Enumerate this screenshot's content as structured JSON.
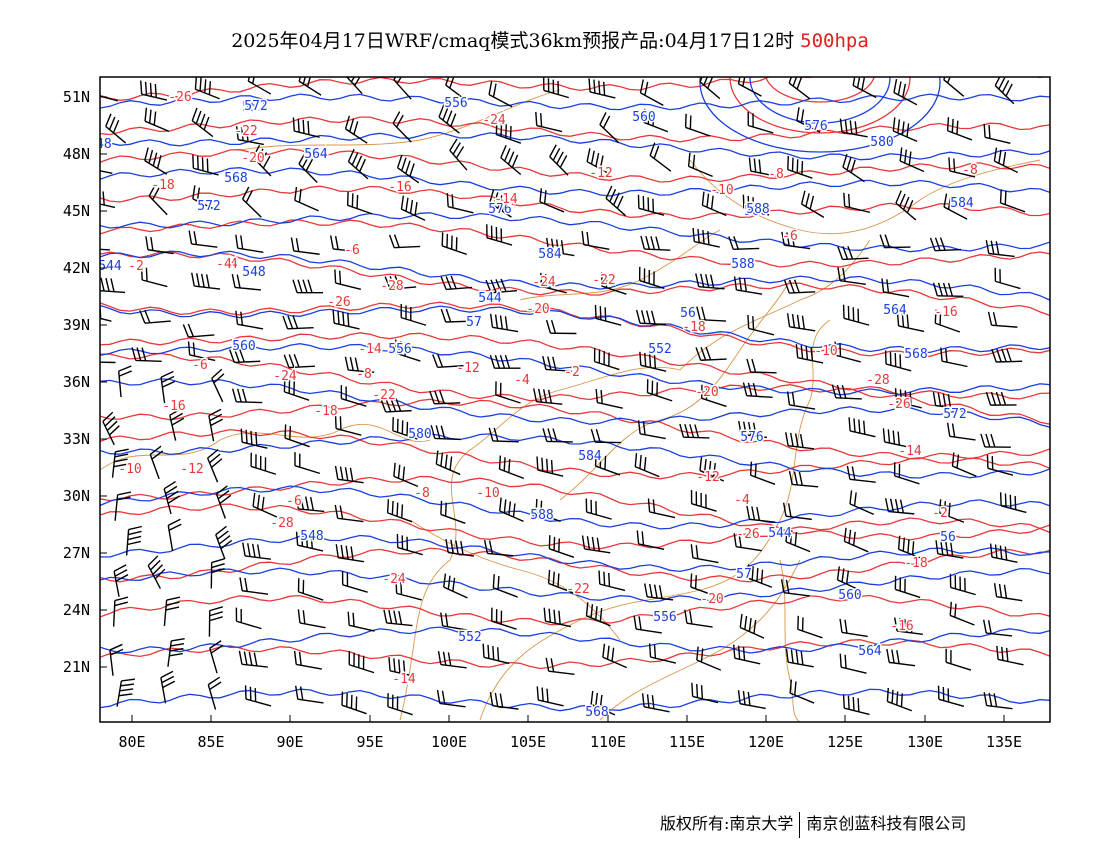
{
  "title": {
    "prefix": "2025年04月17日WRF/cmaq模式36km预报产品:04月17日12时",
    "level": "500hpa"
  },
  "colors": {
    "geopotential": "#1a3fe0",
    "temperature": "#e8383a",
    "border": "#d9954a",
    "barb": "#000000",
    "level": "#e02020"
  },
  "axes": {
    "x_ticks": [
      "80E",
      "85E",
      "90E",
      "95E",
      "100E",
      "105E",
      "110E",
      "115E",
      "120E",
      "125E",
      "130E",
      "135E"
    ],
    "y_ticks": [
      "51N",
      "48N",
      "45N",
      "42N",
      "39N",
      "36N",
      "33N",
      "30N",
      "27N",
      "24N",
      "21N"
    ]
  },
  "layers": {
    "geopotential_contours": [
      "552",
      "556",
      "560",
      "564",
      "568",
      "572",
      "576",
      "580",
      "584",
      "588",
      "548",
      "544",
      "56",
      "57"
    ],
    "temperature_contours": [
      "-26",
      "-24",
      "-22",
      "-20",
      "-18",
      "-16",
      "-14",
      "-12",
      "-10",
      "-8",
      "-6",
      "-4",
      "-2",
      "-28"
    ],
    "wind_barbs": "wind barbs"
  },
  "footer": {
    "copyright": "版权所有:南京大学",
    "company": "南京创蓝科技有限公司"
  }
}
